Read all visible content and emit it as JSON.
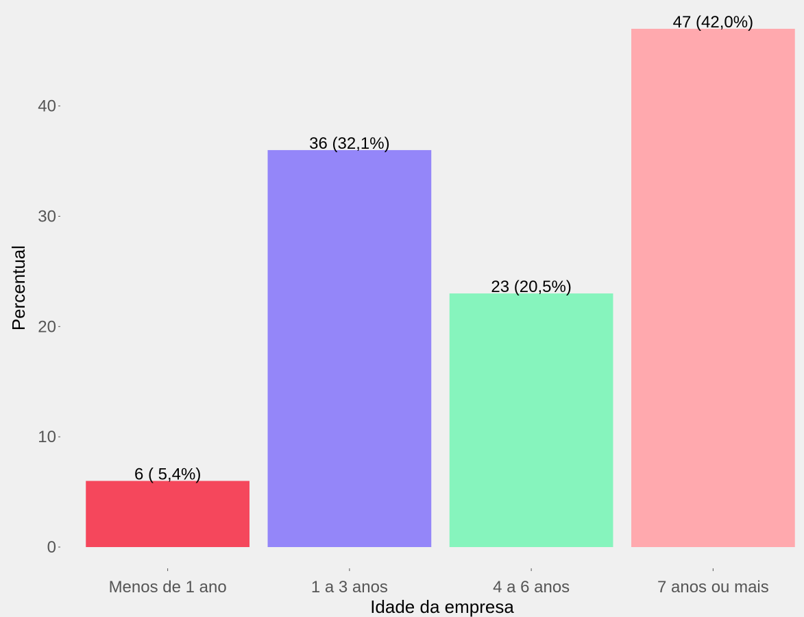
{
  "chart_data": {
    "type": "bar",
    "title": "",
    "xlabel": "Idade da empresa",
    "ylabel": "Percentual",
    "categories": [
      "Menos de 1 ano",
      "1 a 3 anos",
      "4 a 6 anos",
      "7 anos ou mais"
    ],
    "values": [
      6,
      36,
      23,
      47
    ],
    "bar_labels": [
      "6 ( 5,4%)",
      "36 (32,1%)",
      "23 (20,5%)",
      "47 (42,0%)"
    ],
    "colors": [
      "#f5475c",
      "#9486f9",
      "#86f4bd",
      "#ffa9ae"
    ],
    "yticks": [
      0,
      10,
      20,
      30,
      40
    ],
    "ylim": [
      0,
      47
    ],
    "grid": false,
    "legend": "none",
    "background": "#f0f0f0"
  }
}
